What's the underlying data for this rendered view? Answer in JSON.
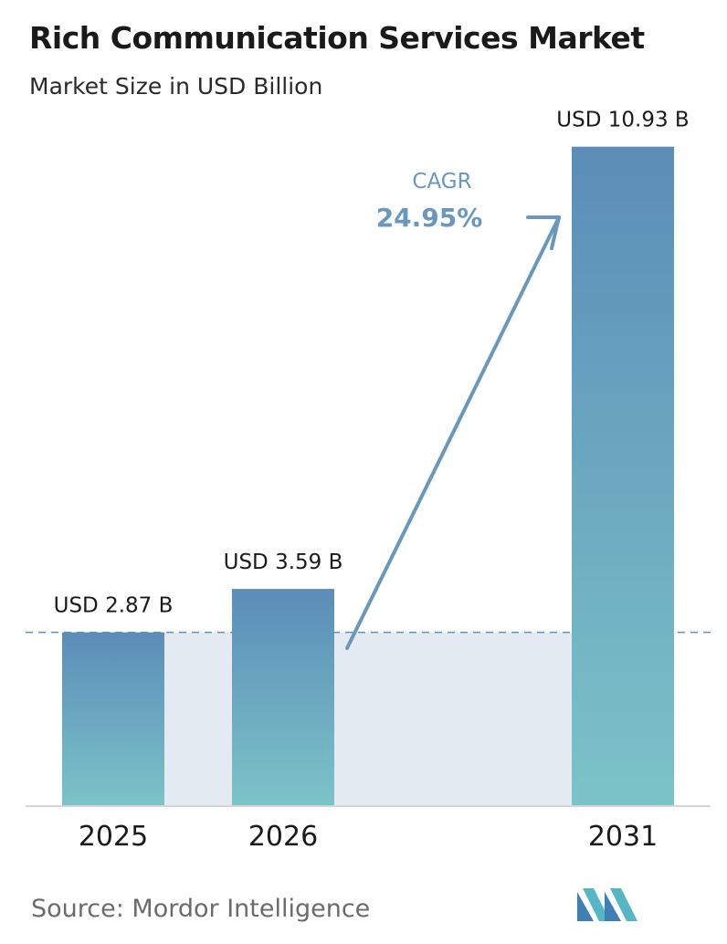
{
  "title": "Rich Communication Services Market",
  "subtitle": "Market Size in USD Billion",
  "source": "Source:  Mordor Intelligence",
  "colors": {
    "bar_top": "#5b8db8",
    "bar_bottom": "#7cc3c8",
    "band": "#e3eaf2",
    "arrow": "#6a98bd",
    "dashed": "#6a8fae",
    "axis": "#d6d6d6"
  },
  "chart_data": {
    "type": "bar",
    "categories": [
      "2025",
      "2026",
      "2031"
    ],
    "values": [
      2.87,
      3.59,
      10.93
    ],
    "value_labels": [
      "USD 2.87 B",
      "USD 3.59 B",
      "USD 10.93 B"
    ],
    "xlabel": "",
    "ylabel": "",
    "ylim": [
      0,
      11.85
    ],
    "grid": false,
    "annotation": {
      "label": "CAGR",
      "value": "24.95%"
    }
  }
}
